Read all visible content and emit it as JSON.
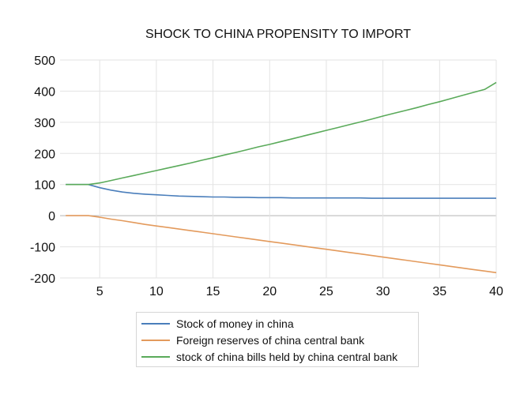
{
  "chart_data": {
    "type": "line",
    "title": "SHOCK TO CHINA PROPENSITY TO IMPORT",
    "xlabel": "",
    "ylabel": "",
    "xlim": [
      1.5,
      40
    ],
    "ylim": [
      -200,
      500
    ],
    "xticks": [
      5,
      10,
      15,
      20,
      25,
      30,
      35,
      40
    ],
    "yticks": [
      -200,
      -100,
      0,
      100,
      200,
      300,
      400,
      500
    ],
    "grid": true,
    "legend_position": "bottom",
    "x": [
      2,
      3,
      4,
      5,
      6,
      7,
      8,
      9,
      10,
      11,
      12,
      13,
      14,
      15,
      16,
      17,
      18,
      19,
      20,
      21,
      22,
      23,
      24,
      25,
      26,
      27,
      28,
      29,
      30,
      31,
      32,
      33,
      34,
      35,
      36,
      37,
      38,
      39,
      40
    ],
    "series": [
      {
        "name": "Stock of money in china",
        "color": "#4a7ebb",
        "values": [
          100,
          100,
          100,
          90,
          82,
          76,
          72,
          69,
          67,
          65,
          63,
          62,
          61,
          60,
          60,
          59,
          59,
          58,
          58,
          58,
          57,
          57,
          57,
          57,
          57,
          57,
          57,
          56,
          56,
          56,
          56,
          56,
          56,
          56,
          56,
          56,
          56,
          56,
          56
        ]
      },
      {
        "name": "Foreign reserves of china central bank",
        "color": "#e39a5c",
        "values": [
          0,
          0,
          0,
          -5,
          -11,
          -16,
          -22,
          -28,
          -33,
          -38,
          -43,
          -48,
          -53,
          -58,
          -63,
          -68,
          -73,
          -78,
          -83,
          -88,
          -93,
          -98,
          -103,
          -108,
          -113,
          -118,
          -123,
          -128,
          -133,
          -138,
          -143,
          -148,
          -153,
          -158,
          -163,
          -168,
          -173,
          -178,
          -183
        ]
      },
      {
        "name": "stock of china bills held by china central bank",
        "color": "#5aaa5a",
        "values": [
          100,
          100,
          100,
          105,
          113,
          121,
          129,
          137,
          145,
          153,
          161,
          169,
          178,
          186,
          195,
          203,
          212,
          221,
          229,
          238,
          247,
          256,
          265,
          274,
          283,
          292,
          301,
          310,
          320,
          329,
          338,
          347,
          357,
          366,
          376,
          386,
          396,
          406,
          428
        ]
      }
    ]
  }
}
